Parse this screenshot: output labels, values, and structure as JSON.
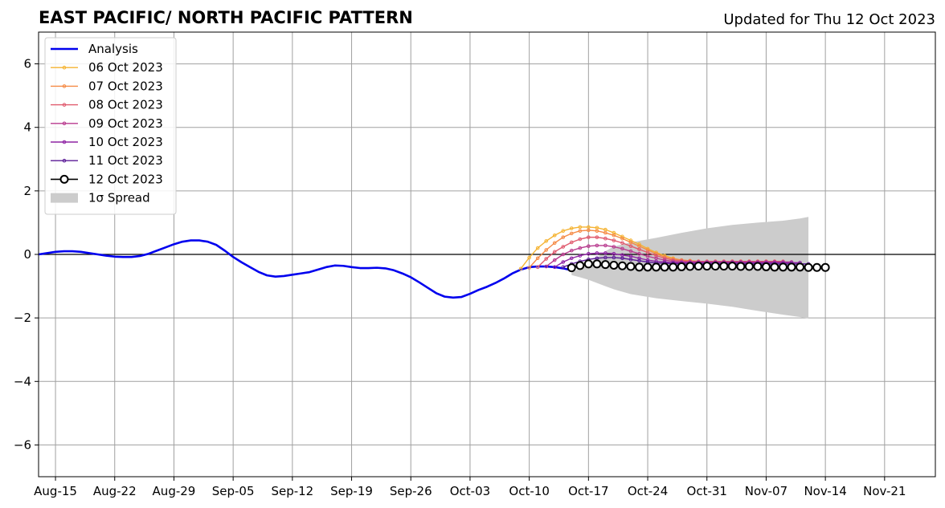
{
  "chart_data": {
    "type": "line",
    "title": "EAST PACIFIC/ NORTH PACIFIC PATTERN",
    "subtitle": "Updated for Thu 12 Oct 2023",
    "xlabel": "",
    "ylabel": "",
    "ylim": [
      -7,
      7
    ],
    "xlim_days_from_aug15": [
      -2,
      104
    ],
    "x_ticks": [
      {
        "date": "2023-08-15",
        "label": "Aug-15"
      },
      {
        "date": "2023-08-22",
        "label": "Aug-22"
      },
      {
        "date": "2023-08-29",
        "label": "Aug-29"
      },
      {
        "date": "2023-09-05",
        "label": "Sep-05"
      },
      {
        "date": "2023-09-12",
        "label": "Sep-12"
      },
      {
        "date": "2023-09-19",
        "label": "Sep-19"
      },
      {
        "date": "2023-09-26",
        "label": "Sep-26"
      },
      {
        "date": "2023-10-03",
        "label": "Oct-03"
      },
      {
        "date": "2023-10-10",
        "label": "Oct-10"
      },
      {
        "date": "2023-10-17",
        "label": "Oct-17"
      },
      {
        "date": "2023-10-24",
        "label": "Oct-24"
      },
      {
        "date": "2023-10-31",
        "label": "Oct-31"
      },
      {
        "date": "2023-11-07",
        "label": "Nov-07"
      },
      {
        "date": "2023-11-14",
        "label": "Nov-14"
      },
      {
        "date": "2023-11-21",
        "label": "Nov-21"
      }
    ],
    "y_ticks": [
      {
        "value": 6,
        "label": "6"
      },
      {
        "value": 4,
        "label": "4"
      },
      {
        "value": 2,
        "label": "2"
      },
      {
        "value": 0,
        "label": "0"
      },
      {
        "value": -2,
        "label": "−2"
      },
      {
        "value": -4,
        "label": "−4"
      },
      {
        "value": -6,
        "label": "−6"
      }
    ],
    "grid": true,
    "legend_position": "top-left",
    "analysis": {
      "name": "Analysis",
      "color": "#0000ee",
      "points": [
        [
          "2023-08-13",
          0.0
        ],
        [
          "2023-08-15",
          0.08
        ],
        [
          "2023-08-16",
          0.1
        ],
        [
          "2023-08-17",
          0.1
        ],
        [
          "2023-08-18",
          0.08
        ],
        [
          "2023-08-19",
          0.04
        ],
        [
          "2023-08-20",
          0.0
        ],
        [
          "2023-08-21",
          -0.04
        ],
        [
          "2023-08-22",
          -0.07
        ],
        [
          "2023-08-23",
          -0.08
        ],
        [
          "2023-08-24",
          -0.08
        ],
        [
          "2023-08-25",
          -0.05
        ],
        [
          "2023-08-26",
          0.02
        ],
        [
          "2023-08-27",
          0.12
        ],
        [
          "2023-08-28",
          0.22
        ],
        [
          "2023-08-29",
          0.32
        ],
        [
          "2023-08-30",
          0.4
        ],
        [
          "2023-08-31",
          0.44
        ],
        [
          "2023-09-01",
          0.44
        ],
        [
          "2023-09-02",
          0.4
        ],
        [
          "2023-09-03",
          0.3
        ],
        [
          "2023-09-04",
          0.12
        ],
        [
          "2023-09-05",
          -0.08
        ],
        [
          "2023-09-06",
          -0.25
        ],
        [
          "2023-09-07",
          -0.4
        ],
        [
          "2023-09-08",
          -0.55
        ],
        [
          "2023-09-09",
          -0.66
        ],
        [
          "2023-09-10",
          -0.7
        ],
        [
          "2023-09-11",
          -0.68
        ],
        [
          "2023-09-12",
          -0.64
        ],
        [
          "2023-09-13",
          -0.6
        ],
        [
          "2023-09-14",
          -0.56
        ],
        [
          "2023-09-15",
          -0.48
        ],
        [
          "2023-09-16",
          -0.4
        ],
        [
          "2023-09-17",
          -0.35
        ],
        [
          "2023-09-18",
          -0.36
        ],
        [
          "2023-09-19",
          -0.4
        ],
        [
          "2023-09-20",
          -0.43
        ],
        [
          "2023-09-21",
          -0.43
        ],
        [
          "2023-09-22",
          -0.42
        ],
        [
          "2023-09-23",
          -0.44
        ],
        [
          "2023-09-24",
          -0.5
        ],
        [
          "2023-09-25",
          -0.6
        ],
        [
          "2023-09-26",
          -0.72
        ],
        [
          "2023-09-27",
          -0.88
        ],
        [
          "2023-09-28",
          -1.05
        ],
        [
          "2023-09-29",
          -1.22
        ],
        [
          "2023-09-30",
          -1.33
        ],
        [
          "2023-10-01",
          -1.36
        ],
        [
          "2023-10-02",
          -1.34
        ],
        [
          "2023-10-03",
          -1.24
        ],
        [
          "2023-10-04",
          -1.12
        ],
        [
          "2023-10-05",
          -1.02
        ],
        [
          "2023-10-06",
          -0.9
        ],
        [
          "2023-10-07",
          -0.76
        ],
        [
          "2023-10-08",
          -0.6
        ],
        [
          "2023-10-09",
          -0.48
        ],
        [
          "2023-10-10",
          -0.4
        ],
        [
          "2023-10-11",
          -0.38
        ],
        [
          "2023-10-12",
          -0.38
        ],
        [
          "2023-10-13",
          -0.4
        ],
        [
          "2023-10-14",
          -0.44
        ],
        [
          "2023-10-15",
          -0.5
        ]
      ]
    },
    "spread": {
      "name": "1σ Spread",
      "color": "#cccccc",
      "upper": [
        [
          "2023-10-15",
          -0.55
        ],
        [
          "2023-10-16",
          -0.45
        ],
        [
          "2023-10-17",
          -0.3
        ],
        [
          "2023-10-18",
          -0.1
        ],
        [
          "2023-10-19",
          0.1
        ],
        [
          "2023-10-20",
          0.25
        ],
        [
          "2023-10-22",
          0.38
        ],
        [
          "2023-10-25",
          0.52
        ],
        [
          "2023-10-28",
          0.68
        ],
        [
          "2023-10-31",
          0.82
        ],
        [
          "2023-11-03",
          0.93
        ],
        [
          "2023-11-06",
          1.0
        ],
        [
          "2023-11-09",
          1.06
        ],
        [
          "2023-11-11",
          1.13
        ],
        [
          "2023-11-12",
          1.18
        ]
      ],
      "lower": [
        [
          "2023-10-15",
          -0.65
        ],
        [
          "2023-10-16",
          -0.72
        ],
        [
          "2023-10-17",
          -0.8
        ],
        [
          "2023-10-18",
          -0.9
        ],
        [
          "2023-10-19",
          -1.0
        ],
        [
          "2023-10-20",
          -1.1
        ],
        [
          "2023-10-22",
          -1.25
        ],
        [
          "2023-10-25",
          -1.38
        ],
        [
          "2023-10-28",
          -1.47
        ],
        [
          "2023-10-31",
          -1.55
        ],
        [
          "2023-11-03",
          -1.65
        ],
        [
          "2023-11-06",
          -1.78
        ],
        [
          "2023-11-09",
          -1.9
        ],
        [
          "2023-11-11",
          -1.97
        ],
        [
          "2023-11-12",
          -2.02
        ]
      ]
    },
    "forecasts": [
      {
        "name": "06 Oct 2023",
        "color": "#f5b331",
        "start": "2023-10-09",
        "step_days": 1,
        "values": [
          -0.45,
          -0.1,
          0.2,
          0.42,
          0.6,
          0.74,
          0.82,
          0.86,
          0.86,
          0.84,
          0.78,
          0.68,
          0.56,
          0.44,
          0.32,
          0.18,
          0.06,
          -0.04,
          -0.12,
          -0.18,
          -0.2,
          -0.22,
          -0.22,
          -0.22,
          -0.22,
          -0.22,
          -0.22,
          -0.22,
          -0.22,
          -0.22
        ]
      },
      {
        "name": "07 Oct 2023",
        "color": "#f58a45",
        "start": "2023-10-10",
        "step_days": 1,
        "values": [
          -0.42,
          -0.12,
          0.14,
          0.36,
          0.54,
          0.66,
          0.74,
          0.76,
          0.74,
          0.68,
          0.6,
          0.5,
          0.38,
          0.26,
          0.14,
          0.02,
          -0.08,
          -0.14,
          -0.18,
          -0.2,
          -0.22,
          -0.22,
          -0.22,
          -0.22,
          -0.22,
          -0.22,
          -0.22,
          -0.22,
          -0.22,
          -0.22
        ]
      },
      {
        "name": "08 Oct 2023",
        "color": "#e05a6e",
        "start": "2023-10-11",
        "step_days": 1,
        "values": [
          -0.4,
          -0.14,
          0.08,
          0.24,
          0.38,
          0.48,
          0.54,
          0.54,
          0.5,
          0.44,
          0.36,
          0.26,
          0.16,
          0.06,
          -0.04,
          -0.12,
          -0.18,
          -0.2,
          -0.22,
          -0.22,
          -0.22,
          -0.22,
          -0.22,
          -0.22,
          -0.22,
          -0.22,
          -0.22,
          -0.22,
          -0.22,
          -0.22
        ]
      },
      {
        "name": "09 Oct 2023",
        "color": "#b83a8e",
        "start": "2023-10-12",
        "step_days": 1,
        "values": [
          -0.38,
          -0.18,
          0.0,
          0.12,
          0.2,
          0.26,
          0.28,
          0.28,
          0.24,
          0.18,
          0.1,
          0.02,
          -0.06,
          -0.12,
          -0.18,
          -0.22,
          -0.24,
          -0.24,
          -0.24,
          -0.24,
          -0.24,
          -0.24,
          -0.24,
          -0.24,
          -0.24,
          -0.24,
          -0.24,
          -0.24,
          -0.24,
          -0.24
        ]
      },
      {
        "name": "10 Oct 2023",
        "color": "#8e23a4",
        "start": "2023-10-13",
        "step_days": 1,
        "values": [
          -0.4,
          -0.24,
          -0.12,
          -0.04,
          0.02,
          0.04,
          0.04,
          0.02,
          -0.02,
          -0.06,
          -0.12,
          -0.18,
          -0.22,
          -0.24,
          -0.26,
          -0.26,
          -0.26,
          -0.26,
          -0.26,
          -0.26,
          -0.26,
          -0.26,
          -0.26,
          -0.26,
          -0.26,
          -0.26,
          -0.26,
          -0.26,
          -0.26,
          -0.26
        ]
      },
      {
        "name": "11 Oct 2023",
        "color": "#5a1a96",
        "start": "2023-10-14",
        "step_days": 1,
        "values": [
          -0.4,
          -0.3,
          -0.22,
          -0.16,
          -0.12,
          -0.1,
          -0.1,
          -0.12,
          -0.16,
          -0.2,
          -0.24,
          -0.27,
          -0.28,
          -0.29,
          -0.3,
          -0.3,
          -0.3,
          -0.3,
          -0.3,
          -0.3,
          -0.3,
          -0.3,
          -0.3,
          -0.3,
          -0.3,
          -0.3,
          -0.3,
          -0.3,
          -0.3,
          -0.3
        ]
      },
      {
        "name": "12 Oct 2023",
        "color": "#000000",
        "start": "2023-10-15",
        "step_days": 1,
        "open_markers": true,
        "values": [
          -0.42,
          -0.35,
          -0.3,
          -0.3,
          -0.32,
          -0.34,
          -0.36,
          -0.38,
          -0.4,
          -0.4,
          -0.4,
          -0.4,
          -0.4,
          -0.39,
          -0.38,
          -0.37,
          -0.37,
          -0.37,
          -0.37,
          -0.37,
          -0.38,
          -0.38,
          -0.38,
          -0.39,
          -0.4,
          -0.4,
          -0.4,
          -0.4,
          -0.41,
          -0.41,
          -0.41
        ]
      }
    ],
    "legend": [
      {
        "label": "Analysis",
        "kind": "analysis",
        "color": "#0000ee"
      },
      {
        "label": "06 Oct 2023",
        "kind": "forecast",
        "color": "#f5b331"
      },
      {
        "label": "07 Oct 2023",
        "kind": "forecast",
        "color": "#f58a45"
      },
      {
        "label": "08 Oct 2023",
        "kind": "forecast",
        "color": "#e05a6e"
      },
      {
        "label": "09 Oct 2023",
        "kind": "forecast",
        "color": "#b83a8e"
      },
      {
        "label": "10 Oct 2023",
        "kind": "forecast",
        "color": "#8e23a4"
      },
      {
        "label": "11 Oct 2023",
        "kind": "forecast",
        "color": "#5a1a96"
      },
      {
        "label": "12 Oct 2023",
        "kind": "forecast-open",
        "color": "#000000"
      },
      {
        "label": "1σ Spread",
        "kind": "spread",
        "color": "#cccccc"
      }
    ]
  }
}
